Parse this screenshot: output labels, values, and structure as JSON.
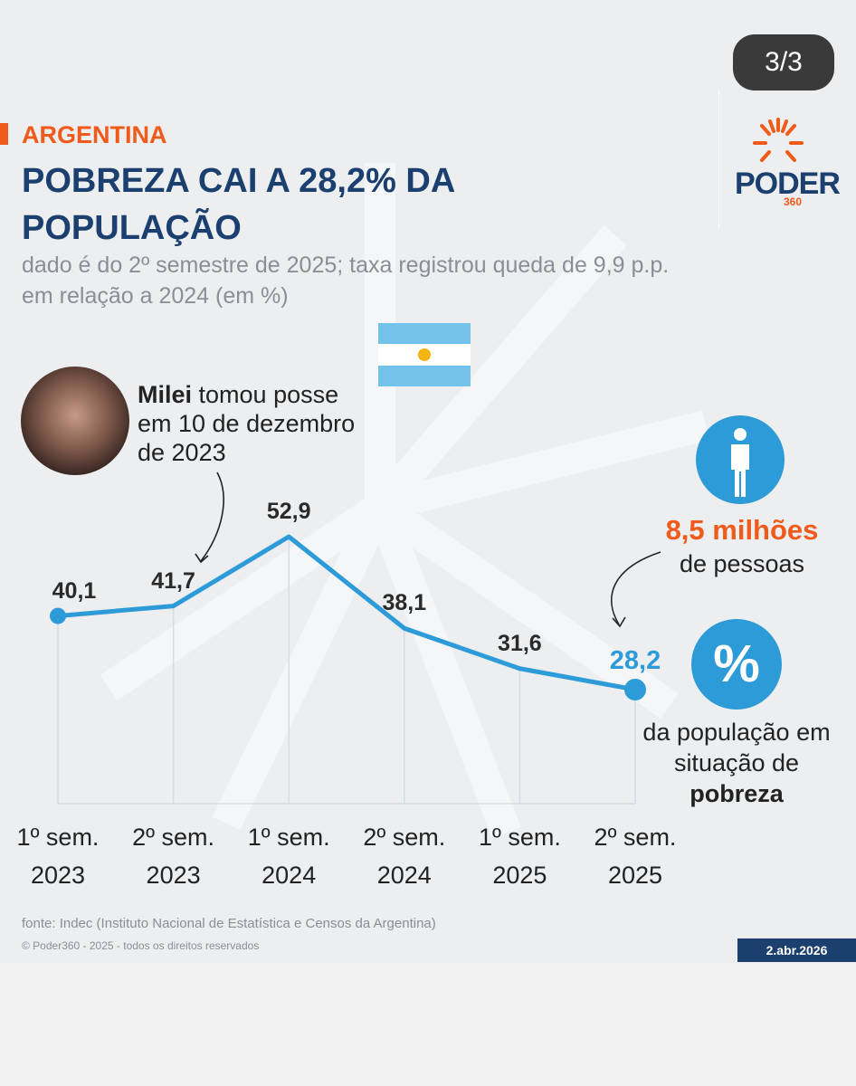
{
  "page_counter": "3/3",
  "logo": {
    "name": "PODER",
    "number": "360"
  },
  "chart_data": {
    "type": "line",
    "kicker": "ARGENTINA",
    "title": "POBREZA CAI A 28,2% DA POPULAÇÃO",
    "subtitle": "dado é do 2º semestre de 2025; taxa registrou queda de 9,9 p.p. em relação a 2024 (em %)",
    "categories": [
      "1º sem. 2023",
      "2º sem. 2023",
      "1º sem. 2024",
      "2º sem. 2024",
      "1º sem. 2025",
      "2º sem. 2025"
    ],
    "values": [
      40.1,
      41.7,
      52.9,
      38.1,
      31.6,
      28.2
    ],
    "value_labels": [
      "40,1",
      "41,7",
      "52,9",
      "38,1",
      "31,6",
      "28,2"
    ],
    "color": "#2e9bd9",
    "annotation": {
      "bold": "Milei",
      "text": "tomou posse em 10 de dezembro de 2023"
    },
    "side_note": {
      "people": "8,5 milhões",
      "people_text": "de pessoas",
      "icon": "%",
      "share_text": "da população em situação de",
      "share_bold": "pobreza"
    },
    "source": "fonte: Indec (Instituto Nacional de Estatística e Censos da Argentina)",
    "copyright": "© Poder360 - 2025 - todos os direitos reservados",
    "date": "2.abr.2026"
  }
}
